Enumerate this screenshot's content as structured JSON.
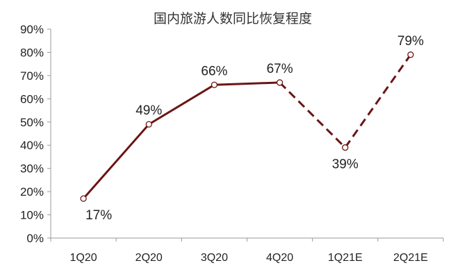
{
  "chart_data": {
    "type": "line",
    "title": "国内旅游人数同比恢复程度",
    "categories": [
      "1Q20",
      "2Q20",
      "3Q20",
      "4Q20",
      "1Q21E",
      "2Q21E"
    ],
    "values": [
      17,
      49,
      66,
      67,
      39,
      79
    ],
    "data_labels": [
      "17%",
      "49%",
      "66%",
      "67%",
      "39%",
      "79%"
    ],
    "segments": {
      "actual": [
        "1Q20",
        "2Q20",
        "3Q20",
        "4Q20"
      ],
      "estimate": [
        "4Q20",
        "1Q21E",
        "2Q21E"
      ]
    },
    "ylim": [
      0,
      90
    ],
    "yticks": [
      "0%",
      "10%",
      "20%",
      "30%",
      "40%",
      "50%",
      "60%",
      "70%",
      "80%",
      "90%"
    ],
    "grid": false,
    "legend": "none",
    "line_color": "#6b1414"
  }
}
